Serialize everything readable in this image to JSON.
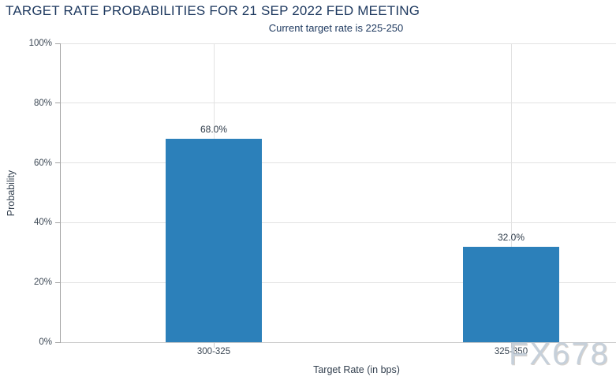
{
  "chart": {
    "watermark": "FX678"
  },
  "chart_data": {
    "type": "bar",
    "title": "TARGET RATE PROBABILITIES FOR 21 SEP 2022 FED MEETING",
    "subtitle": "Current target rate is 225-250",
    "categories": [
      "300-325",
      "325-350"
    ],
    "values": [
      68.0,
      32.0
    ],
    "value_labels": [
      "68.0%",
      "32.0%"
    ],
    "xlabel": "Target Rate (in bps)",
    "ylabel": "Probability",
    "ylim": [
      0,
      100
    ],
    "yticks": [
      "0%",
      "20%",
      "40%",
      "60%",
      "80%",
      "100%"
    ],
    "grid": true,
    "legend": "none",
    "bar_color": "#2c80ba"
  }
}
